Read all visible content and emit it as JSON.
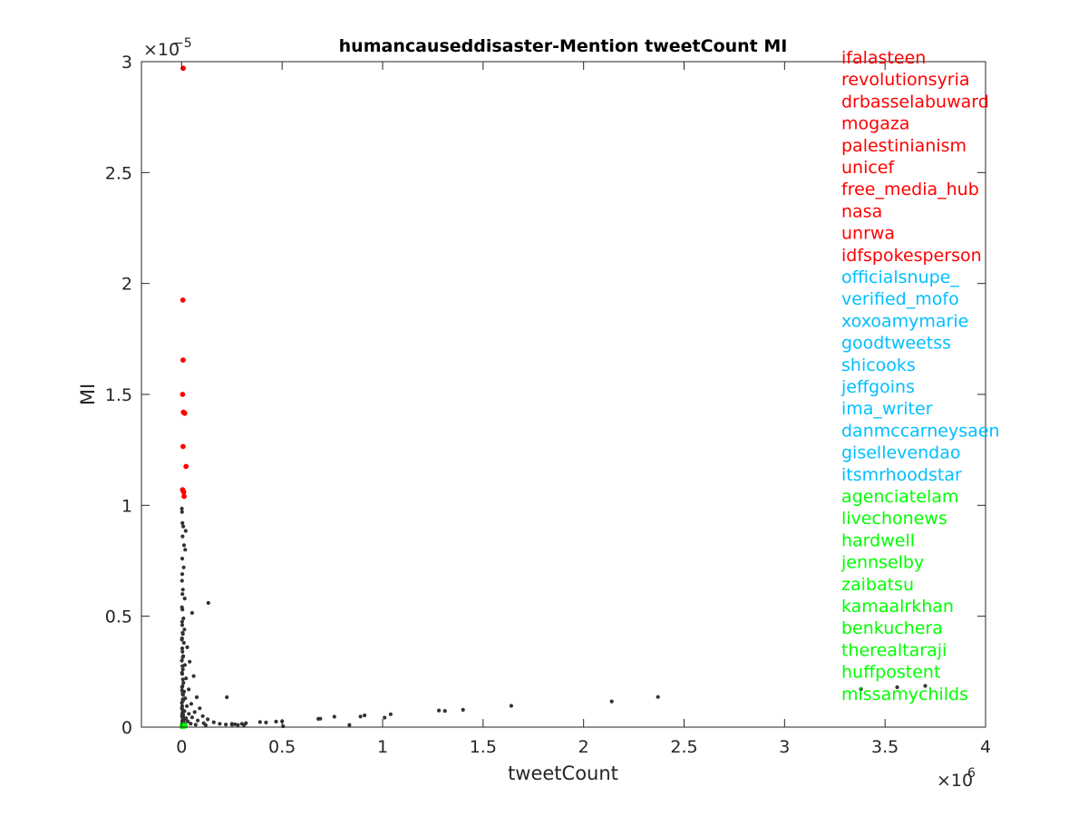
{
  "chart_data": {
    "type": "scatter",
    "title": "humancauseddisaster-Mention tweetCount MI",
    "xlabel": "tweetCount",
    "ylabel": "MI",
    "xlim": [
      -200000,
      4000000
    ],
    "ylim": [
      0,
      3e-05
    ],
    "x_ticks": [
      0,
      500000,
      1000000,
      1500000,
      2000000,
      2500000,
      3000000,
      3500000,
      4000000
    ],
    "x_tick_labels": [
      "0",
      "0.5",
      "1",
      "1.5",
      "2",
      "2.5",
      "3",
      "3.5",
      "4"
    ],
    "x_exponent_base": "×10",
    "x_exponent_power": "6",
    "y_ticks": [
      0,
      5e-06,
      1e-05,
      1.5e-05,
      2e-05,
      2.5e-05,
      3e-05
    ],
    "y_tick_labels": [
      "0",
      "0.5",
      "1",
      "1.5",
      "2",
      "2.5",
      "3"
    ],
    "y_exponent_base": "×10",
    "y_exponent_power": "−5",
    "grid": false,
    "colors": {
      "top": "#ff0000",
      "middle": "#00bfff",
      "bottom": "#00ff00",
      "other": "#333333"
    },
    "series": [
      {
        "group": "top",
        "points": [
          [
            8000,
            2.97e-05
          ],
          [
            6000,
            1.925e-05
          ],
          [
            7000,
            1.655e-05
          ],
          [
            5000,
            1.5e-05
          ],
          [
            9000,
            1.42e-05
          ],
          [
            15000,
            1.415e-05
          ],
          [
            7000,
            1.265e-05
          ],
          [
            22000,
            1.175e-05
          ],
          [
            5000,
            1.07e-05
          ],
          [
            10000,
            1.06e-05
          ],
          [
            12000,
            1.04e-05
          ]
        ]
      },
      {
        "group": "middle",
        "points": []
      },
      {
        "group": "bottom",
        "points": [
          [
            3000,
            5e-08
          ],
          [
            6000,
            4e-08
          ],
          [
            9000,
            6e-08
          ],
          [
            12000,
            5e-08
          ],
          [
            15000,
            4e-08
          ],
          [
            18000,
            6e-08
          ],
          [
            4000,
            8e-08
          ],
          [
            8000,
            7e-08
          ],
          [
            11000,
            8e-08
          ],
          [
            2000,
            3e-08
          ]
        ]
      },
      {
        "group": "other",
        "points": [
          [
            1000,
            9.85e-06
          ],
          [
            2000,
            9.7e-06
          ],
          [
            4000,
            9.2e-06
          ],
          [
            8000,
            9.05e-06
          ],
          [
            20000,
            8.85e-06
          ],
          [
            5000,
            8.6e-06
          ],
          [
            12000,
            8.2e-06
          ],
          [
            18000,
            8e-06
          ],
          [
            3000,
            7.6e-06
          ],
          [
            10000,
            7.2e-06
          ],
          [
            2000,
            6.6e-06
          ],
          [
            6000,
            6.2e-06
          ],
          [
            15000,
            5.8e-06
          ],
          [
            133000,
            5.6e-06
          ],
          [
            4000,
            5.3e-06
          ],
          [
            52000,
            5.15e-06
          ],
          [
            9000,
            4.9e-06
          ],
          [
            3000,
            4.6e-06
          ],
          [
            14000,
            4.4e-06
          ],
          [
            6000,
            4.2e-06
          ],
          [
            2000,
            4e-06
          ],
          [
            11000,
            3.8e-06
          ],
          [
            28000,
            3.6e-06
          ],
          [
            4000,
            3.4e-06
          ],
          [
            8000,
            3.2e-06
          ],
          [
            1000,
            3e-06
          ],
          [
            40000,
            2.95e-06
          ],
          [
            16000,
            2.8e-06
          ],
          [
            6000,
            2.6e-06
          ],
          [
            3000,
            2.4e-06
          ],
          [
            60000,
            2.3e-06
          ],
          [
            22000,
            2.2e-06
          ],
          [
            9000,
            2e-06
          ],
          [
            2000,
            1.8e-06
          ],
          [
            35000,
            1.7e-06
          ],
          [
            12000,
            1.6e-06
          ],
          [
            5000,
            1.5e-06
          ],
          [
            75000,
            1.35e-06
          ],
          [
            18000,
            1.3e-06
          ],
          [
            7000,
            1.2e-06
          ],
          [
            1000,
            1.1e-06
          ],
          [
            48000,
            1.05e-06
          ],
          [
            26000,
            9.5e-07
          ],
          [
            90000,
            8.5e-07
          ],
          [
            4000,
            8e-07
          ],
          [
            14000,
            7.2e-07
          ],
          [
            65000,
            6.8e-07
          ],
          [
            36000,
            6e-07
          ],
          [
            8000,
            5.5e-07
          ],
          [
            105000,
            5e-07
          ],
          [
            2000,
            4.8e-07
          ],
          [
            52000,
            4.4e-07
          ],
          [
            22000,
            4e-07
          ],
          [
            130000,
            3.5e-07
          ],
          [
            11000,
            3.2e-07
          ],
          [
            80000,
            3e-07
          ],
          [
            30000,
            2.6e-07
          ],
          [
            160000,
            2.2e-07
          ],
          [
            6000,
            2e-07
          ],
          [
            110000,
            1.8e-07
          ],
          [
            45000,
            1.6e-07
          ],
          [
            190000,
            1.5e-07
          ],
          [
            17000,
            1.3e-07
          ],
          [
            220000,
            1.2e-07
          ],
          [
            70000,
            1.1e-07
          ],
          [
            250000,
            1.1e-07
          ],
          [
            3000,
            9e-08
          ],
          [
            280000,
            1e-07
          ],
          [
            120000,
            9e-08
          ],
          [
            310000,
            1e-07
          ],
          [
            225000,
            1.35e-06
          ],
          [
            250000,
            1.5e-07
          ],
          [
            265000,
            1.3e-07
          ],
          [
            300000,
            1.5e-07
          ],
          [
            320000,
            1.8e-07
          ],
          [
            390000,
            2.3e-07
          ],
          [
            420000,
            2.1e-07
          ],
          [
            470000,
            2.5e-07
          ],
          [
            500000,
            2.6e-07
          ],
          [
            505000,
            4e-08
          ],
          [
            680000,
            3.7e-07
          ],
          [
            690000,
            3.8e-07
          ],
          [
            760000,
            4.7e-07
          ],
          [
            835000,
            1e-07
          ],
          [
            890000,
            4.8e-07
          ],
          [
            910000,
            5.3e-07
          ],
          [
            1010000,
            4.3e-07
          ],
          [
            1040000,
            5.8e-07
          ],
          [
            1280000,
            7.5e-07
          ],
          [
            1310000,
            7.3e-07
          ],
          [
            1400000,
            7.8e-07
          ],
          [
            1640000,
            9.6e-07
          ],
          [
            2140000,
            1.16e-06
          ],
          [
            2370000,
            1.36e-06
          ],
          [
            3380000,
            1.72e-06
          ],
          [
            3560000,
            1.8e-06
          ],
          [
            3700000,
            1.86e-06
          ],
          [
            1500,
            1.5e-07
          ],
          [
            3500,
            2.8e-07
          ],
          [
            5500,
            3.5e-07
          ],
          [
            7500,
            4.5e-07
          ],
          [
            9500,
            2.5e-07
          ],
          [
            2500,
            5.5e-07
          ],
          [
            4500,
            6.5e-07
          ],
          [
            6500,
            7.5e-07
          ],
          [
            1200,
            8.5e-07
          ],
          [
            3200,
            9.5e-07
          ],
          [
            5200,
            1.25e-06
          ],
          [
            7200,
            1.45e-06
          ],
          [
            2200,
            1.65e-06
          ],
          [
            4200,
            1.85e-06
          ],
          [
            6200,
            2.15e-06
          ],
          [
            1800,
            2.45e-06
          ],
          [
            3800,
            2.75e-06
          ],
          [
            5800,
            3.15e-06
          ],
          [
            2800,
            3.55e-06
          ],
          [
            1300,
            3.95e-06
          ],
          [
            4800,
            4.25e-06
          ],
          [
            2600,
            4.75e-06
          ],
          [
            1700,
            5.4e-06
          ],
          [
            3700,
            6e-06
          ],
          [
            2900,
            6.9e-06
          ]
        ]
      }
    ],
    "annotations": [
      {
        "text": "ifalasteen",
        "group": "top"
      },
      {
        "text": "revolutionsyria",
        "group": "top"
      },
      {
        "text": "drbasselabuward",
        "group": "top"
      },
      {
        "text": "mogaza",
        "group": "top"
      },
      {
        "text": "palestinianism",
        "group": "top"
      },
      {
        "text": "unicef",
        "group": "top"
      },
      {
        "text": "free_media_hub",
        "group": "top"
      },
      {
        "text": "nasa",
        "group": "top"
      },
      {
        "text": "unrwa",
        "group": "top"
      },
      {
        "text": "idfspokesperson",
        "group": "top"
      },
      {
        "text": "officialsnupe_",
        "group": "middle"
      },
      {
        "text": "verified_mofo",
        "group": "middle"
      },
      {
        "text": "xoxoamymarie",
        "group": "middle"
      },
      {
        "text": "goodtweetss",
        "group": "middle"
      },
      {
        "text": "shicooks",
        "group": "middle"
      },
      {
        "text": "jeffgoins",
        "group": "middle"
      },
      {
        "text": "ima_writer",
        "group": "middle"
      },
      {
        "text": "danmccarneysaen",
        "group": "middle"
      },
      {
        "text": "gisellevendao",
        "group": "middle"
      },
      {
        "text": "itsmrhoodstar",
        "group": "middle"
      },
      {
        "text": "agenciatelam",
        "group": "bottom"
      },
      {
        "text": "livechonews",
        "group": "bottom"
      },
      {
        "text": "hardwell",
        "group": "bottom"
      },
      {
        "text": "jennselby",
        "group": "bottom"
      },
      {
        "text": "zaibatsu",
        "group": "bottom"
      },
      {
        "text": "kamaalrkhan",
        "group": "bottom"
      },
      {
        "text": "benkuchera",
        "group": "bottom"
      },
      {
        "text": "therealtaraji",
        "group": "bottom"
      },
      {
        "text": "huffpostent",
        "group": "bottom"
      },
      {
        "text": "missamychilds",
        "group": "bottom"
      }
    ]
  }
}
